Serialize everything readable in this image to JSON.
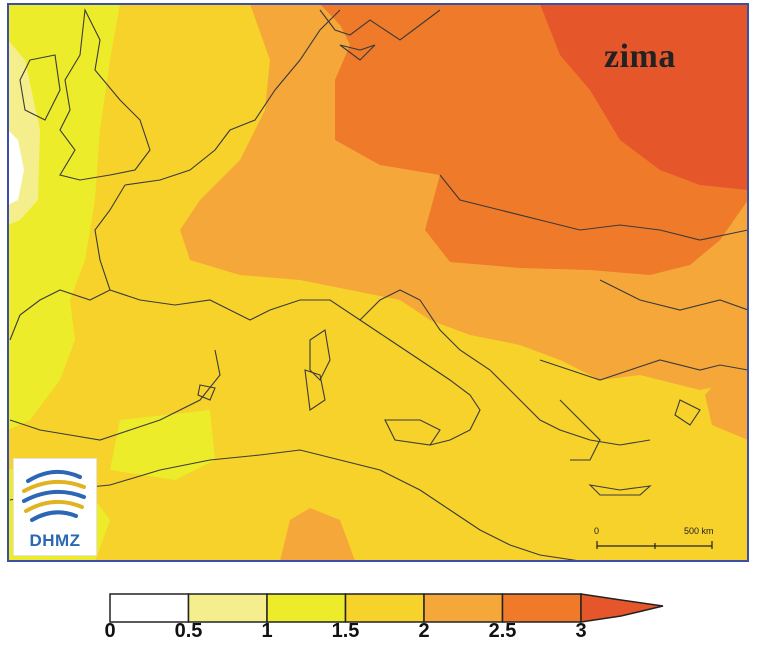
{
  "map": {
    "season": "zima",
    "logo_text": "DHMZ",
    "scale": {
      "start": "0",
      "end": "500 km"
    }
  },
  "legend": {
    "ticks": [
      "0",
      "0.5",
      "1",
      "1.5",
      "2",
      "2.5",
      "3"
    ],
    "bins": [
      {
        "from": 0,
        "to": 0.5,
        "color": "#ffffff"
      },
      {
        "from": 0.5,
        "to": 1,
        "color": "#f4ef8c"
      },
      {
        "from": 1,
        "to": 1.5,
        "color": "#ecec2a"
      },
      {
        "from": 1.5,
        "to": 2,
        "color": "#f6d22a"
      },
      {
        "from": 2,
        "to": 2.5,
        "color": "#f5a73a"
      },
      {
        "from": 2.5,
        "to": 3,
        "color": "#ee7a2a"
      },
      {
        "from": 3,
        "to": null,
        "color": "#e5572a"
      }
    ]
  }
}
